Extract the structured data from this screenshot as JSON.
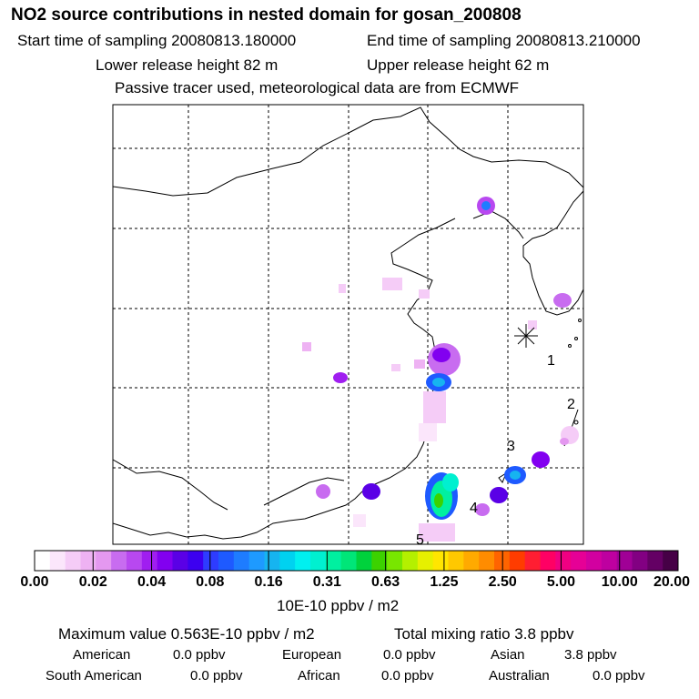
{
  "title": "NO2 source contributions in nested domain for gosan_200808",
  "header": {
    "start": "Start time of sampling 20080813.180000",
    "end": "End time of sampling 20080813.210000",
    "lower": "Lower release height   82 m",
    "upper": "Upper release height   62 m",
    "passive": "Passive tracer used, meteorological data are from ECMWF"
  },
  "map": {
    "receptor_marker": "asterisk-icon",
    "site_labels": [
      "1",
      "2",
      "3",
      "4",
      "5"
    ]
  },
  "colorbar": {
    "labels": [
      "0.00",
      "0.02",
      "0.04",
      "0.08",
      "0.16",
      "0.31",
      "0.63",
      "1.25",
      "2.50",
      "5.00",
      "10.00",
      "20.00"
    ],
    "colors": [
      "#ffffff",
      "#fbe6fb",
      "#f5ccf7",
      "#eeb2f3",
      "#e498f0",
      "#c86cf0",
      "#b848f0",
      "#a01ef0",
      "#8200f0",
      "#5a00e6",
      "#3c00f0",
      "#2e3cff",
      "#1e5aff",
      "#1e7cff",
      "#1e9aff",
      "#16b4f0",
      "#00d2f0",
      "#00f0f0",
      "#00f0d0",
      "#00f0a0",
      "#00e678",
      "#00d23c",
      "#3cd200",
      "#78e600",
      "#b4f000",
      "#e6f000",
      "#ffe600",
      "#ffc800",
      "#ffaa00",
      "#ff8c00",
      "#ff6400",
      "#ff3c00",
      "#ff1e32",
      "#ff0064",
      "#f00082",
      "#e60096",
      "#d200a0",
      "#be00a0",
      "#a00096",
      "#820082",
      "#640064",
      "#460046"
    ],
    "units": "10E-10 ppbv / m2"
  },
  "stats": {
    "max_value": "Maximum value  0.563E-10 ppbv / m2",
    "total_mixing": "Total mixing ratio       3.8 ppbv",
    "rows": [
      [
        {
          "label": "American",
          "value": "0.0 ppbv"
        },
        {
          "label": "European",
          "value": "0.0 ppbv"
        },
        {
          "label": "Asian",
          "value": "3.8 ppbv"
        }
      ],
      [
        {
          "label": "South American",
          "value": "0.0 ppbv"
        },
        {
          "label": "African",
          "value": "0.0 ppbv"
        },
        {
          "label": "Australian",
          "value": "0.0 ppbv"
        }
      ]
    ]
  }
}
